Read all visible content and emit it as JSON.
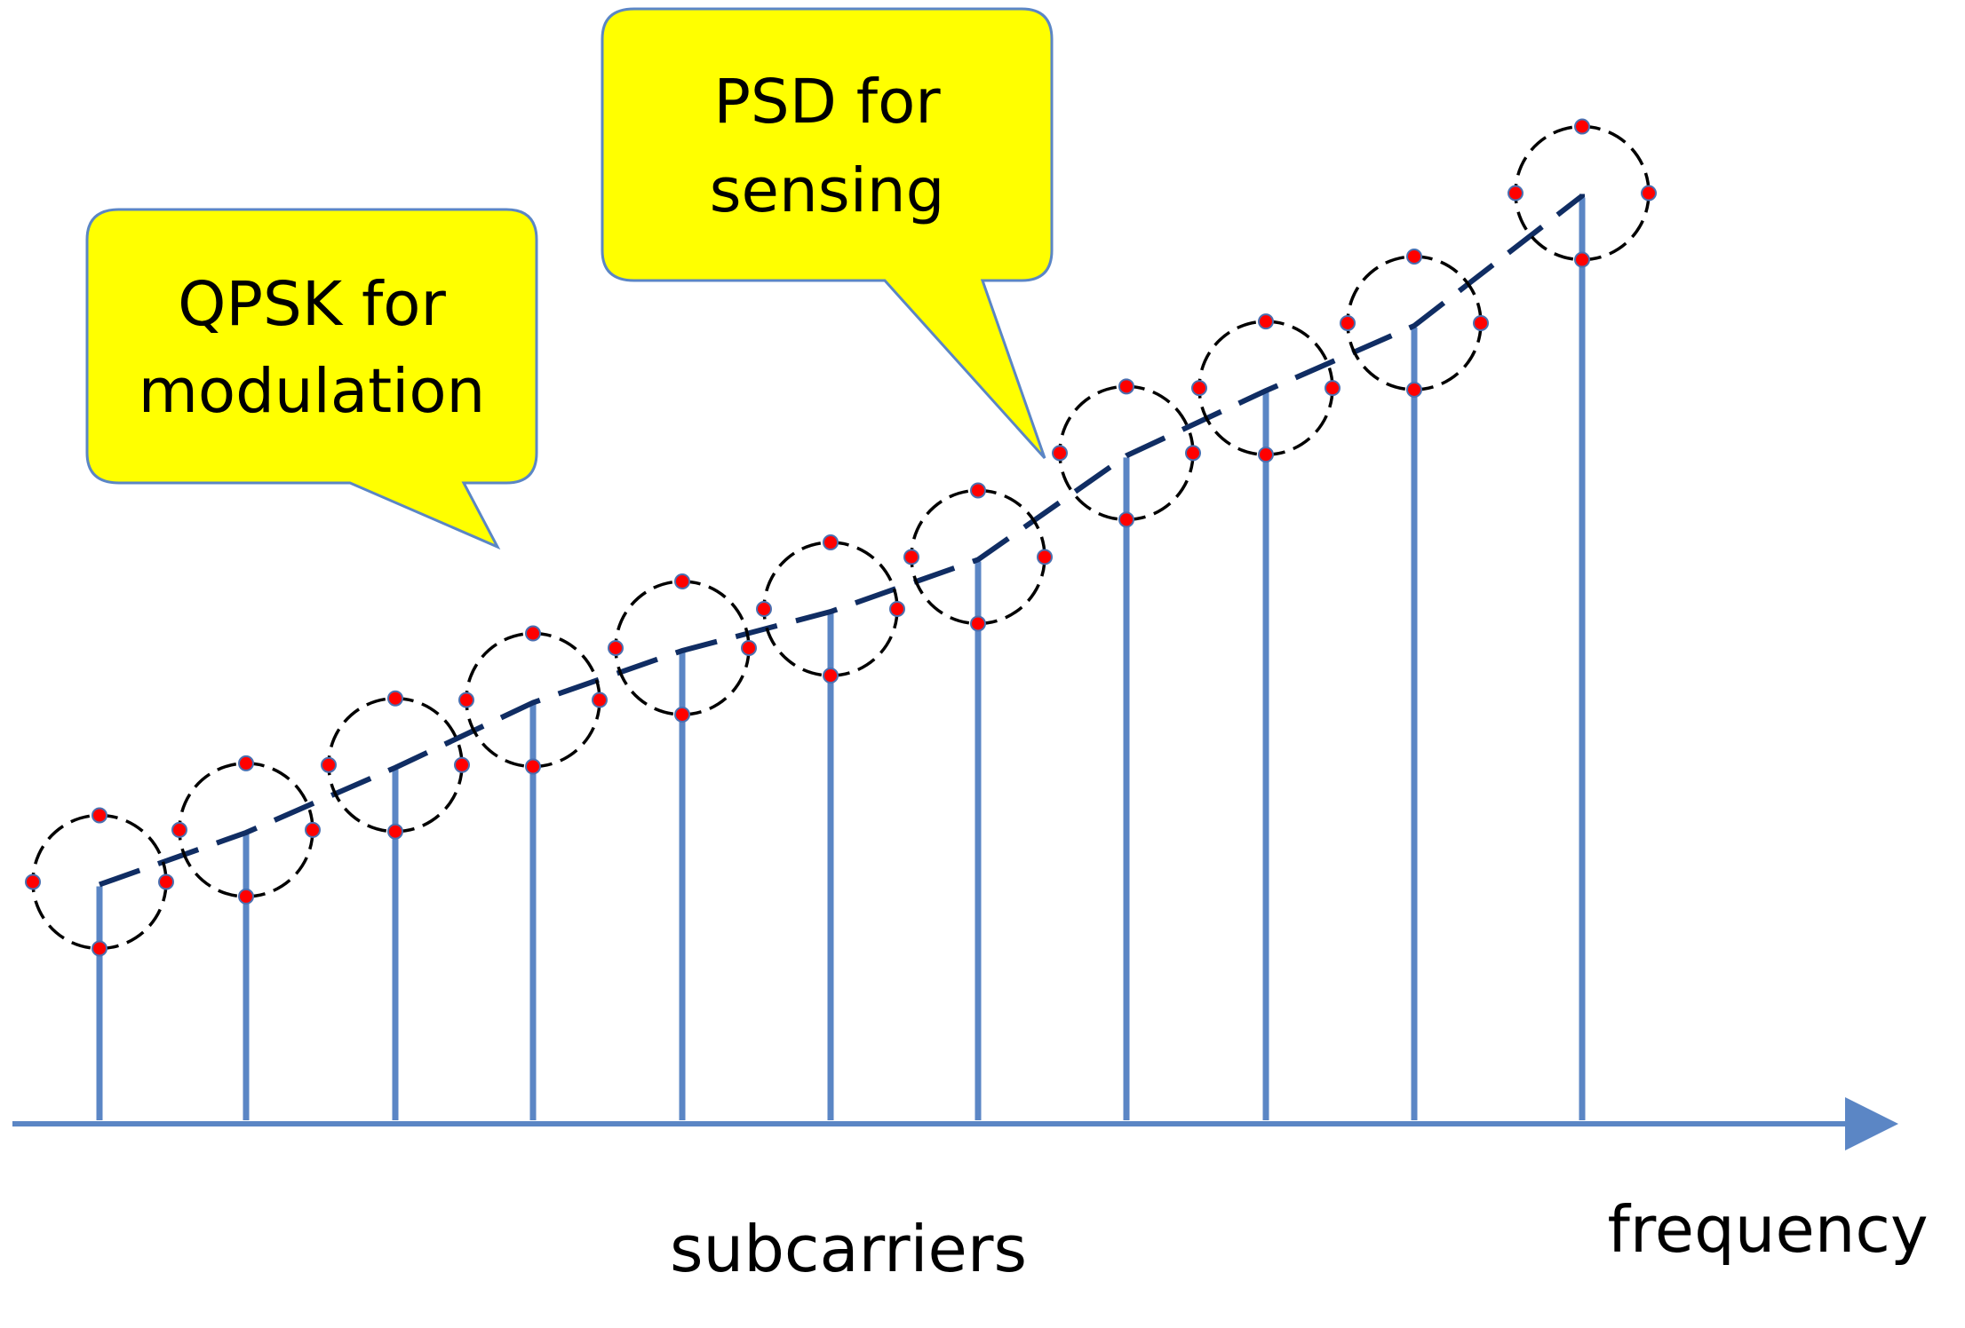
{
  "labels": {
    "xaxis": "subcarriers",
    "axis_end": "frequency"
  },
  "callouts": [
    {
      "id": "qpsk",
      "lines": [
        "QPSK for",
        "modulation"
      ]
    },
    {
      "id": "psd",
      "lines": [
        "PSD for",
        "sensing"
      ]
    }
  ],
  "subcarriers": {
    "count": 11,
    "psd_levels": [
      0.18,
      0.22,
      0.27,
      0.32,
      0.36,
      0.39,
      0.43,
      0.51,
      0.56,
      0.61,
      0.71
    ]
  },
  "colors": {
    "stem": "#5b86c5",
    "psd_line": "#102d63",
    "callout_fill": "#ffff00",
    "callout_border": "#5b86c5",
    "constellation_point": "#ff0000",
    "circle": "#000000"
  }
}
